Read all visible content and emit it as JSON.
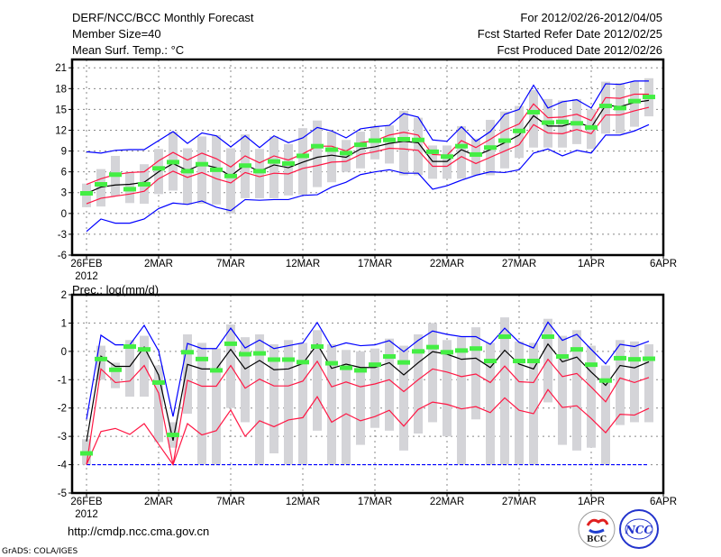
{
  "header": {
    "title": "DERF/NCC/BCC Monthly Forecast",
    "member_size": "Member Size=40",
    "variable": "Mean Surf. Temp.: °C",
    "period": "For 2012/02/26-2012/04/05",
    "started": "Fcst Started Refer Date 2012/02/25",
    "produced": "Fcst Produced Date 2012/02/26"
  },
  "footer": {
    "url": "http://cmdp.ncc.cma.gov.cn",
    "grads": "GrADS: COLA/IGES",
    "logo_bcc": "BCC",
    "logo_ncc": "NCC"
  },
  "colors": {
    "max_min": "#0000ff",
    "spread": "#ff1744",
    "mean": "#000000",
    "obs": "#44ee44",
    "range": "#d4d4d8"
  },
  "chart_data": [
    {
      "type": "line",
      "title": "Mean Surf. Temp.: °C",
      "x_tick_labels": [
        "26FEB",
        "2MAR",
        "7MAR",
        "12MAR",
        "17MAR",
        "22MAR",
        "27MAR",
        "1APR",
        "6APR"
      ],
      "x_tick_days": [
        0,
        5,
        10,
        15,
        20,
        25,
        30,
        35,
        40
      ],
      "year_label": "2012",
      "y_ticks": [
        -6,
        -3,
        0,
        3,
        6,
        9,
        12,
        15,
        18,
        21
      ],
      "ylim": [
        -6,
        22.2
      ],
      "grid": true,
      "days": 40,
      "series": [
        {
          "name": "max",
          "color": "max_min",
          "values": [
            8.9,
            8.7,
            9.1,
            9.2,
            9.2,
            10.5,
            11.8,
            10.1,
            11.6,
            11.2,
            9.6,
            11.2,
            9.5,
            11.2,
            10.2,
            10.9,
            12.4,
            11.9,
            10.9,
            12.2,
            12.5,
            12.7,
            14.4,
            13.9,
            10.6,
            10.4,
            12.5,
            10.4,
            11.8,
            14.3,
            15.0,
            18.5,
            15.2,
            16.1,
            16.4,
            15.2,
            18.7,
            18.6,
            19.1,
            19.1
          ]
        },
        {
          "name": "min",
          "color": "max_min",
          "values": [
            -2.6,
            -0.8,
            -1.4,
            -1.4,
            -0.8,
            0.7,
            1.5,
            1.3,
            1.8,
            0.9,
            0.4,
            2.0,
            1.9,
            2.0,
            2.0,
            2.6,
            2.7,
            3.8,
            4.5,
            5.6,
            6.0,
            6.3,
            5.8,
            5.8,
            3.5,
            4.0,
            4.8,
            5.5,
            6.0,
            5.9,
            6.3,
            8.7,
            9.3,
            8.3,
            9.1,
            8.7,
            11.3,
            11.3,
            11.9,
            12.8
          ]
        },
        {
          "name": "upper",
          "color": "spread",
          "values": [
            4.2,
            5.0,
            5.6,
            5.9,
            6.0,
            7.6,
            8.8,
            7.7,
            8.7,
            7.9,
            6.7,
            8.3,
            7.3,
            8.3,
            7.7,
            8.6,
            9.7,
            9.7,
            9.0,
            10.2,
            10.5,
            11.3,
            11.7,
            11.3,
            8.5,
            8.4,
            10.5,
            9.5,
            10.7,
            12.0,
            12.9,
            15.8,
            13.8,
            13.9,
            14.3,
            13.4,
            16.7,
            16.6,
            17.2,
            17.2
          ]
        },
        {
          "name": "lower",
          "color": "spread",
          "values": [
            1.4,
            2.2,
            2.5,
            2.8,
            3.2,
            5.0,
            6.1,
            5.2,
            5.9,
            5.0,
            4.4,
            5.9,
            5.3,
            5.8,
            5.7,
            6.5,
            6.9,
            7.4,
            7.5,
            8.5,
            8.9,
            9.4,
            9.3,
            9.1,
            6.8,
            6.8,
            8.2,
            7.2,
            8.1,
            9.0,
            9.9,
            12.8,
            11.6,
            11.5,
            12.1,
            11.5,
            14.2,
            14.2,
            14.8,
            15.3
          ]
        },
        {
          "name": "mean",
          "color": "mean",
          "values": [
            2.9,
            3.8,
            4.1,
            4.2,
            4.5,
            6.0,
            7.2,
            6.2,
            7.1,
            6.6,
            5.4,
            7.0,
            6.1,
            7.0,
            6.6,
            7.4,
            8.1,
            8.4,
            8.1,
            9.3,
            9.6,
            10.1,
            10.4,
            10.2,
            7.5,
            7.5,
            9.2,
            8.3,
            9.2,
            10.2,
            11.3,
            14.1,
            12.6,
            12.6,
            13.2,
            12.4,
            15.6,
            15.4,
            16.0,
            16.3
          ]
        }
      ],
      "obs": [
        2.9,
        4.2,
        5.6,
        3.5,
        4.2,
        6.5,
        7.4,
        6.1,
        7.1,
        6.3,
        5.4,
        6.9,
        6.1,
        7.5,
        7.2,
        8.3,
        9.7,
        9.2,
        8.7,
        9.9,
        10.5,
        10.6,
        10.7,
        10.6,
        8.9,
        8.2,
        9.7,
        8.5,
        9.5,
        10.5,
        11.9,
        14.6,
        13.1,
        13.2,
        13.0,
        12.4,
        15.5,
        15.2,
        16.2,
        16.8
      ],
      "range_low": [
        0.9,
        1.0,
        2.5,
        1.5,
        1.4,
        2.8,
        3.3,
        1.3,
        1.4,
        1.3,
        0.0,
        2.2,
        2.2,
        2.2,
        2.6,
        2.7,
        3.8,
        4.5,
        6.0,
        6.5,
        7.8,
        7.2,
        5.5,
        5.5,
        5.0,
        5.0,
        5.0,
        5.5,
        5.5,
        6.5,
        8.0,
        9.5,
        9.5,
        9.5,
        10.0,
        9.3,
        11.5,
        11.5,
        12.5,
        14.0
      ],
      "range_high": [
        4.3,
        6.4,
        8.3,
        6.0,
        7.1,
        9.3,
        11.8,
        9.4,
        11.1,
        11.3,
        9.4,
        11.4,
        9.3,
        11.1,
        10.0,
        12.3,
        13.4,
        11.8,
        10.6,
        11.8,
        12.5,
        12.7,
        14.8,
        13.8,
        9.8,
        9.8,
        12.6,
        10.8,
        13.5,
        14.7,
        15.5,
        17.8,
        16.5,
        16.3,
        16.5,
        15.0,
        19.0,
        18.8,
        19.0,
        19.5
      ]
    },
    {
      "type": "line",
      "title": "Prec.: log(mm/d)",
      "x_tick_labels": [
        "26FEB",
        "2MAR",
        "7MAR",
        "12MAR",
        "17MAR",
        "22MAR",
        "27MAR",
        "1APR",
        "6APR"
      ],
      "x_tick_days": [
        0,
        5,
        10,
        15,
        20,
        25,
        30,
        35,
        40
      ],
      "year_label": "2012",
      "y_ticks": [
        -5,
        -4,
        -3,
        -2,
        -1,
        0,
        1,
        2
      ],
      "ylim": [
        -5,
        2
      ],
      "grid": true,
      "days": 40,
      "series": [
        {
          "name": "max",
          "color": "max_min",
          "values": [
            -2.4,
            0.57,
            0.23,
            0.23,
            0.92,
            0.02,
            -2.3,
            0.28,
            0.1,
            0.1,
            0.82,
            0.12,
            0.4,
            0.1,
            0.2,
            0.3,
            1.02,
            0.15,
            0.3,
            0.2,
            0.23,
            0.38,
            -0.01,
            0.39,
            0.72,
            0.6,
            0.52,
            0.52,
            0.25,
            0.82,
            0.32,
            0.12,
            1.03,
            0.39,
            0.6,
            0.07,
            -0.44,
            0.25,
            0.17,
            0.36
          ]
        },
        {
          "name": "min",
          "color": "max_min",
          "dashed": true,
          "values": [
            -4,
            -4,
            -4,
            -4,
            -4,
            -4,
            -4,
            -4,
            -4,
            -4,
            -4,
            -4,
            -4,
            -4,
            -4,
            -4,
            -4,
            -4,
            -4,
            -4,
            -4,
            -4,
            -4,
            -4,
            -4,
            -4,
            -4,
            -4,
            -4,
            -4,
            -4,
            -4,
            -4,
            -4,
            -4,
            -4,
            -4,
            -4,
            -4,
            -4
          ]
        },
        {
          "name": "upper",
          "color": "spread",
          "values": [
            -4,
            -0.62,
            -1.1,
            -1.05,
            -0.5,
            -1.47,
            -4,
            -1.02,
            -1.23,
            -1.23,
            -0.5,
            -1.3,
            -0.98,
            -1.22,
            -1.22,
            -1.05,
            -0.35,
            -1.25,
            -1.08,
            -1.25,
            -1.15,
            -1.0,
            -1.42,
            -1.0,
            -0.62,
            -0.73,
            -0.89,
            -0.8,
            -1.1,
            -0.52,
            -1.07,
            -1.1,
            -0.28,
            -0.89,
            -0.78,
            -1.26,
            -1.78,
            -0.94,
            -1.1,
            -0.92
          ]
        },
        {
          "name": "lower",
          "color": "spread",
          "values": [
            -4,
            -2.83,
            -2.72,
            -2.93,
            -2.55,
            -3.28,
            -4,
            -2.55,
            -2.95,
            -2.8,
            -2.07,
            -3.0,
            -2.45,
            -2.66,
            -2.42,
            -2.34,
            -1.6,
            -2.5,
            -2.2,
            -2.45,
            -2.3,
            -2.08,
            -2.64,
            -2.05,
            -1.79,
            -1.87,
            -2.03,
            -1.95,
            -2.16,
            -1.64,
            -2.08,
            -2.2,
            -1.35,
            -1.98,
            -1.92,
            -2.37,
            -2.87,
            -2.22,
            -2.25,
            -2.01
          ]
        },
        {
          "name": "mean",
          "color": "mean",
          "values": [
            -3.18,
            -0.17,
            -0.53,
            -0.53,
            0.15,
            -0.84,
            -3.15,
            -0.46,
            -0.62,
            -0.62,
            0.07,
            -0.62,
            -0.32,
            -0.65,
            -0.62,
            -0.43,
            0.25,
            -0.6,
            -0.45,
            -0.57,
            -0.57,
            -0.4,
            -0.83,
            -0.4,
            -0.01,
            -0.1,
            -0.28,
            -0.24,
            -0.57,
            0.04,
            -0.45,
            -0.62,
            0.26,
            -0.37,
            -0.2,
            -0.73,
            -1.2,
            -0.5,
            -0.58,
            -0.37
          ]
        }
      ],
      "obs": [
        -3.6,
        -0.27,
        -0.65,
        0.17,
        0.07,
        -1.1,
        -2.95,
        -0.03,
        -0.27,
        -0.67,
        0.27,
        -0.1,
        -0.07,
        -0.29,
        -0.29,
        -0.38,
        0.17,
        -0.42,
        -0.58,
        -0.67,
        -0.47,
        -0.18,
        -0.39,
        0.0,
        0.15,
        -0.03,
        0.03,
        0.1,
        -0.34,
        0.52,
        -0.34,
        -0.34,
        0.52,
        -0.18,
        0.07,
        -0.47,
        -1.03,
        -0.24,
        -0.28,
        -0.26
      ],
      "range_low": [
        -4,
        -1.0,
        -1.3,
        -1.6,
        -1.6,
        -3.2,
        -3.4,
        -2.2,
        -4,
        -4,
        -2.0,
        -2.5,
        -4,
        -3.6,
        -4,
        -4,
        -2.8,
        -4,
        -4,
        -3.3,
        -2.7,
        -2.8,
        -3.5,
        -2.9,
        -2.5,
        -3.0,
        -4,
        -2.4,
        -4,
        -4,
        -4,
        -4,
        -1.8,
        -3.3,
        -3.5,
        -3.4,
        -4,
        -2.6,
        -2.5,
        -2.5
      ],
      "range_high": [
        -3.1,
        0.2,
        -0.4,
        0.4,
        0.55,
        -0.5,
        -2.5,
        0.6,
        0.3,
        0.1,
        0.95,
        0.5,
        0.6,
        0.25,
        0.4,
        0.3,
        0.75,
        0.25,
        0.05,
        0.0,
        0.1,
        0.45,
        0.2,
        0.6,
        1.0,
        0.4,
        0.5,
        0.85,
        0.3,
        1.2,
        0.35,
        0.3,
        1.15,
        0.55,
        0.75,
        0.2,
        -0.5,
        0.4,
        0.35,
        0.25
      ]
    }
  ]
}
